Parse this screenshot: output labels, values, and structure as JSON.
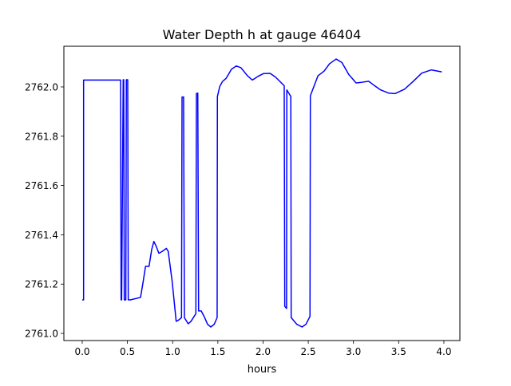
{
  "chart_data": {
    "type": "line",
    "title": "Water Depth h at gauge 46404",
    "xlabel": "hours",
    "ylabel": "",
    "xlim": [
      -0.203,
      4.177
    ],
    "ylim": [
      2760.971,
      2762.165
    ],
    "xticks": [
      0.0,
      0.5,
      1.0,
      1.5,
      2.0,
      2.5,
      3.0,
      3.5,
      4.0
    ],
    "xtick_labels": [
      "0.0",
      "0.5",
      "1.0",
      "1.5",
      "2.0",
      "2.5",
      "3.0",
      "3.5",
      "4.0"
    ],
    "yticks": [
      2761.0,
      2761.2,
      2761.4,
      2761.6,
      2761.8,
      2762.0
    ],
    "ytick_labels": [
      "2761.0",
      "2761.2",
      "2761.4",
      "2761.6",
      "2761.8",
      "2762.0"
    ],
    "grid": false,
    "series": [
      {
        "name": "h",
        "color": "#0000ff",
        "x": [
          0.0,
          0.015,
          0.015,
          0.424,
          0.43,
          0.436,
          0.453,
          0.459,
          0.465,
          0.482,
          0.488,
          0.503,
          0.509,
          0.532,
          0.645,
          0.674,
          0.7,
          0.739,
          0.768,
          0.792,
          0.815,
          0.848,
          0.886,
          0.93,
          0.951,
          0.995,
          1.039,
          1.062,
          1.098,
          1.104,
          1.121,
          1.13,
          1.172,
          1.201,
          1.257,
          1.263,
          1.278,
          1.287,
          1.316,
          1.348,
          1.386,
          1.422,
          1.46,
          1.492,
          1.495,
          1.521,
          1.551,
          1.592,
          1.651,
          1.704,
          1.755,
          1.828,
          1.881,
          1.945,
          2.004,
          2.078,
          2.137,
          2.231,
          2.234,
          2.24,
          2.26,
          2.263,
          2.307,
          2.311,
          2.373,
          2.431,
          2.475,
          2.519,
          2.523,
          2.607,
          2.675,
          2.735,
          2.808,
          2.872,
          2.947,
          3.029,
          3.079,
          3.167,
          3.226,
          3.3,
          3.388,
          3.461,
          3.565,
          3.653,
          3.755,
          3.859,
          3.976
        ],
        "y": [
          2761.136,
          2761.136,
          2762.028,
          2762.028,
          2761.136,
          2761.136,
          2762.029,
          2762.029,
          2761.136,
          2761.136,
          2762.029,
          2762.029,
          2761.136,
          2761.136,
          2761.146,
          2761.21,
          2761.272,
          2761.272,
          2761.34,
          2761.373,
          2761.356,
          2761.325,
          2761.333,
          2761.345,
          2761.333,
          2761.21,
          2761.049,
          2761.053,
          2761.064,
          2761.959,
          2761.959,
          2761.064,
          2761.039,
          2761.048,
          2761.08,
          2761.973,
          2761.975,
          2761.091,
          2761.091,
          2761.069,
          2761.037,
          2761.026,
          2761.037,
          2761.064,
          2761.961,
          2762.002,
          2762.022,
          2762.035,
          2762.072,
          2762.085,
          2762.078,
          2762.045,
          2762.028,
          2762.043,
          2762.054,
          2762.055,
          2762.04,
          2762.006,
          2762.004,
          2761.11,
          2761.101,
          2761.988,
          2761.961,
          2761.064,
          2761.037,
          2761.026,
          2761.037,
          2761.069,
          2761.964,
          2762.045,
          2762.064,
          2762.094,
          2762.113,
          2762.099,
          2762.051,
          2762.016,
          2762.018,
          2762.023,
          2762.007,
          2761.988,
          2761.975,
          2761.973,
          2761.991,
          2762.02,
          2762.056,
          2762.069,
          2762.061
        ]
      }
    ]
  }
}
